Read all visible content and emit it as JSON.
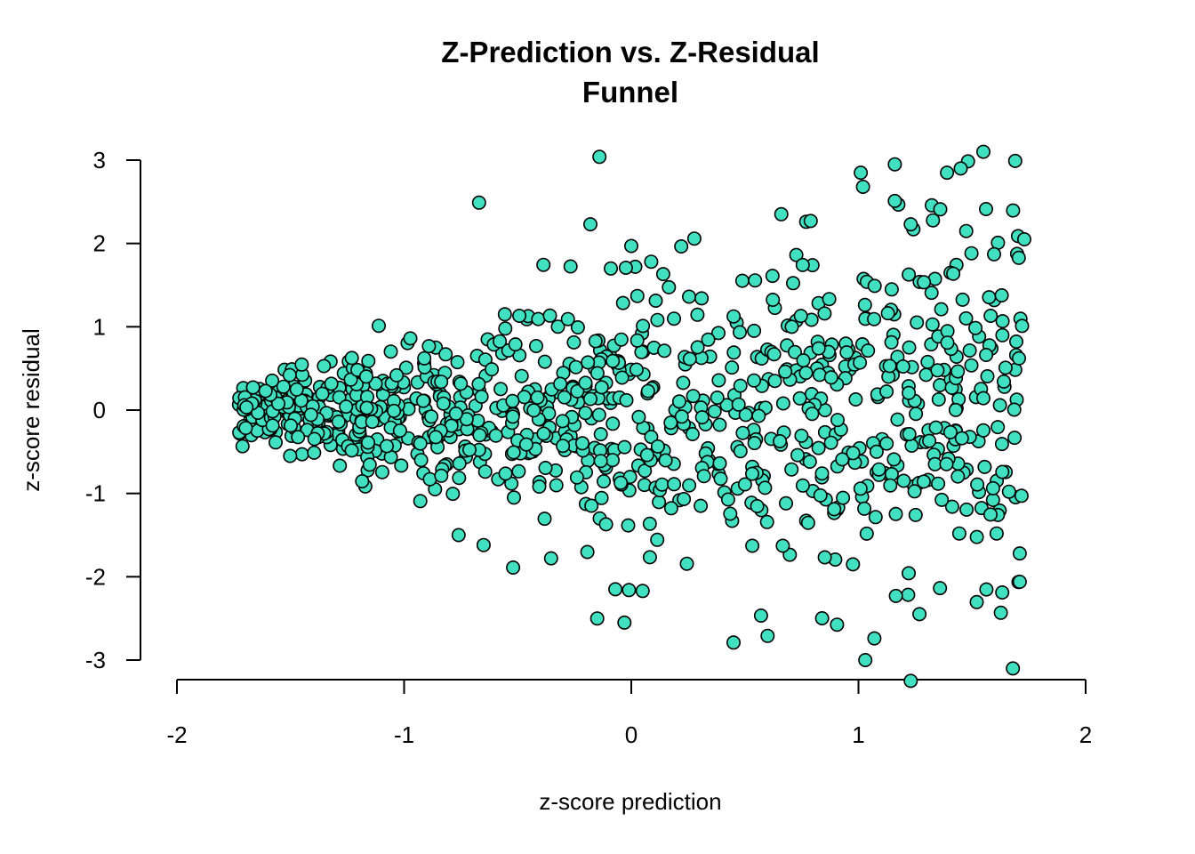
{
  "chart_data": {
    "type": "scatter",
    "title": "Z-Prediction vs. Z-Residual",
    "subtitle": "Funnel",
    "xlabel": "z-score prediction",
    "ylabel": "z-score residual",
    "xlim": [
      -2,
      2
    ],
    "ylim": [
      -3,
      3
    ],
    "x_ticks": [
      -2,
      -1,
      0,
      1,
      2
    ],
    "y_ticks": [
      -3,
      -2,
      -1,
      0,
      1,
      2,
      3
    ],
    "x_tick_labels": [
      "-2",
      "-1",
      "0",
      "1",
      "2"
    ],
    "y_tick_labels": [
      "-3",
      "-2",
      "-1",
      "0",
      "1",
      "2",
      "3"
    ],
    "grid": false,
    "legend": "none",
    "point_color": "#40E0C0",
    "point_edge_color": "#000000",
    "n_points": 1000,
    "pattern": "funnel: residual spread grows linearly from about 0.15 at x=-1.73 to about 1.25 at x=1.73",
    "x_range_observed": [
      -1.73,
      1.73
    ],
    "notable_points": [
      {
        "x": -0.14,
        "y": 3.04
      },
      {
        "x": 1.55,
        "y": 3.1
      },
      {
        "x": 1.69,
        "y": 2.99
      },
      {
        "x": 1.16,
        "y": 2.95
      },
      {
        "x": 1.01,
        "y": 2.85
      },
      {
        "x": 1.39,
        "y": 2.85
      },
      {
        "x": 1.45,
        "y": 2.9
      },
      {
        "x": 1.02,
        "y": 2.68
      },
      {
        "x": -0.67,
        "y": 2.49
      },
      {
        "x": 1.16,
        "y": 2.51
      },
      {
        "x": 1.36,
        "y": 2.41
      },
      {
        "x": 0.77,
        "y": 2.26
      },
      {
        "x": 0.79,
        "y": 2.27
      },
      {
        "x": -0.18,
        "y": 2.23
      },
      {
        "x": 1.23,
        "y": 2.23
      },
      {
        "x": -0.09,
        "y": 1.7
      },
      {
        "x": 0.0,
        "y": 1.97
      },
      {
        "x": -0.15,
        "y": -2.5
      },
      {
        "x": -0.03,
        "y": -2.55
      },
      {
        "x": -0.07,
        "y": -2.15
      },
      {
        "x": -0.01,
        "y": -2.16
      },
      {
        "x": 0.05,
        "y": -2.17
      },
      {
        "x": 0.45,
        "y": -2.79
      },
      {
        "x": 0.6,
        "y": -2.71
      },
      {
        "x": 1.07,
        "y": -2.74
      },
      {
        "x": 1.03,
        "y": -3.0
      },
      {
        "x": 1.68,
        "y": -3.1
      },
      {
        "x": 1.23,
        "y": -3.25
      },
      {
        "x": 1.71,
        "y": -2.06
      },
      {
        "x": -0.52,
        "y": -1.89
      },
      {
        "x": -0.65,
        "y": -1.62
      },
      {
        "x": -0.76,
        "y": -1.5
      },
      {
        "x": 1.71,
        "y": -1.72
      },
      {
        "x": 1.73,
        "y": 2.05
      },
      {
        "x": 1.72,
        "y": 1.01
      }
    ],
    "seed": 20240611
  }
}
